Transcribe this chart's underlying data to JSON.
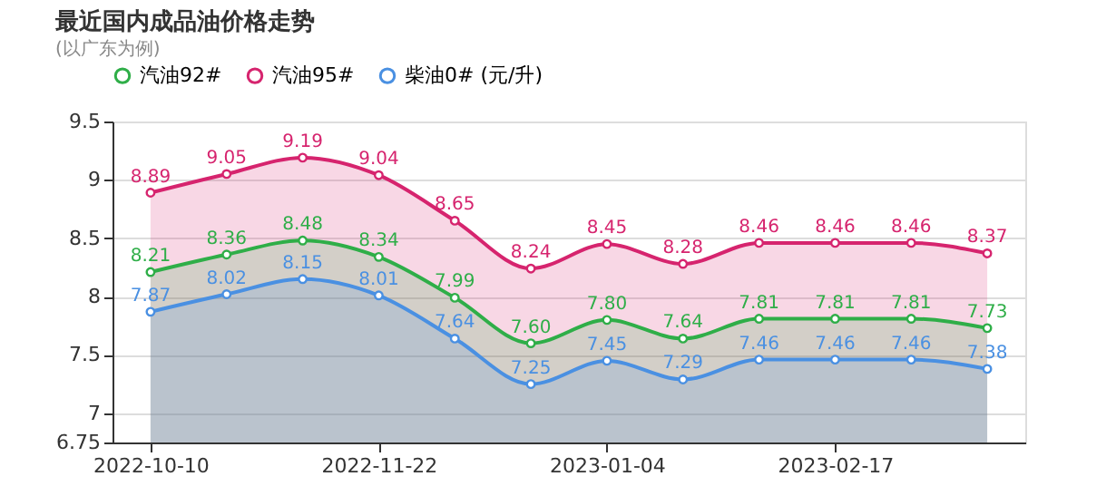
{
  "chart_data": {
    "type": "area",
    "title": "最近国内成品油价格走势",
    "subtitle": "(以广东为例)",
    "categories": [
      "2022-10-10",
      null,
      null,
      "2022-11-22",
      null,
      null,
      "2023-01-04",
      null,
      null,
      "2023-02-17",
      null,
      null
    ],
    "series": [
      {
        "name": "汽油92#",
        "color": "#2fae48",
        "values": [
          8.21,
          8.36,
          8.48,
          8.34,
          7.99,
          7.6,
          7.8,
          7.64,
          7.81,
          7.81,
          7.81,
          7.73
        ],
        "value_labels": [
          "8.21",
          "8.36",
          "8.48",
          "8.34",
          "7.99",
          "7.60",
          "7.80",
          "7.64",
          "7.81",
          "7.81",
          "7.81",
          "7.73"
        ]
      },
      {
        "name": "汽油95#",
        "color": "#d6246e",
        "values": [
          8.89,
          9.05,
          9.19,
          9.04,
          8.65,
          8.24,
          8.45,
          8.28,
          8.46,
          8.46,
          8.46,
          8.37
        ],
        "value_labels": [
          "8.89",
          "9.05",
          "9.19",
          "9.04",
          "8.65",
          "8.24",
          "8.45",
          "8.28",
          "8.46",
          "8.46",
          "8.46",
          "8.37"
        ]
      },
      {
        "name": "柴油0# (元/升)",
        "color": "#4a90e2",
        "values": [
          7.87,
          8.02,
          8.15,
          8.01,
          7.64,
          7.25,
          7.45,
          7.29,
          7.46,
          7.46,
          7.46,
          7.38
        ],
        "value_labels": [
          "7.87",
          "8.02",
          "8.15",
          "8.01",
          "7.64",
          "7.25",
          "7.45",
          "7.29",
          "7.46",
          "7.46",
          "7.46",
          "7.38"
        ]
      }
    ],
    "ylim": [
      6.75,
      9.5
    ],
    "yticks": [
      6.75,
      7,
      7.5,
      8,
      8.5,
      9,
      9.5
    ],
    "grid": "y",
    "legend": "top",
    "marker": "circle"
  }
}
